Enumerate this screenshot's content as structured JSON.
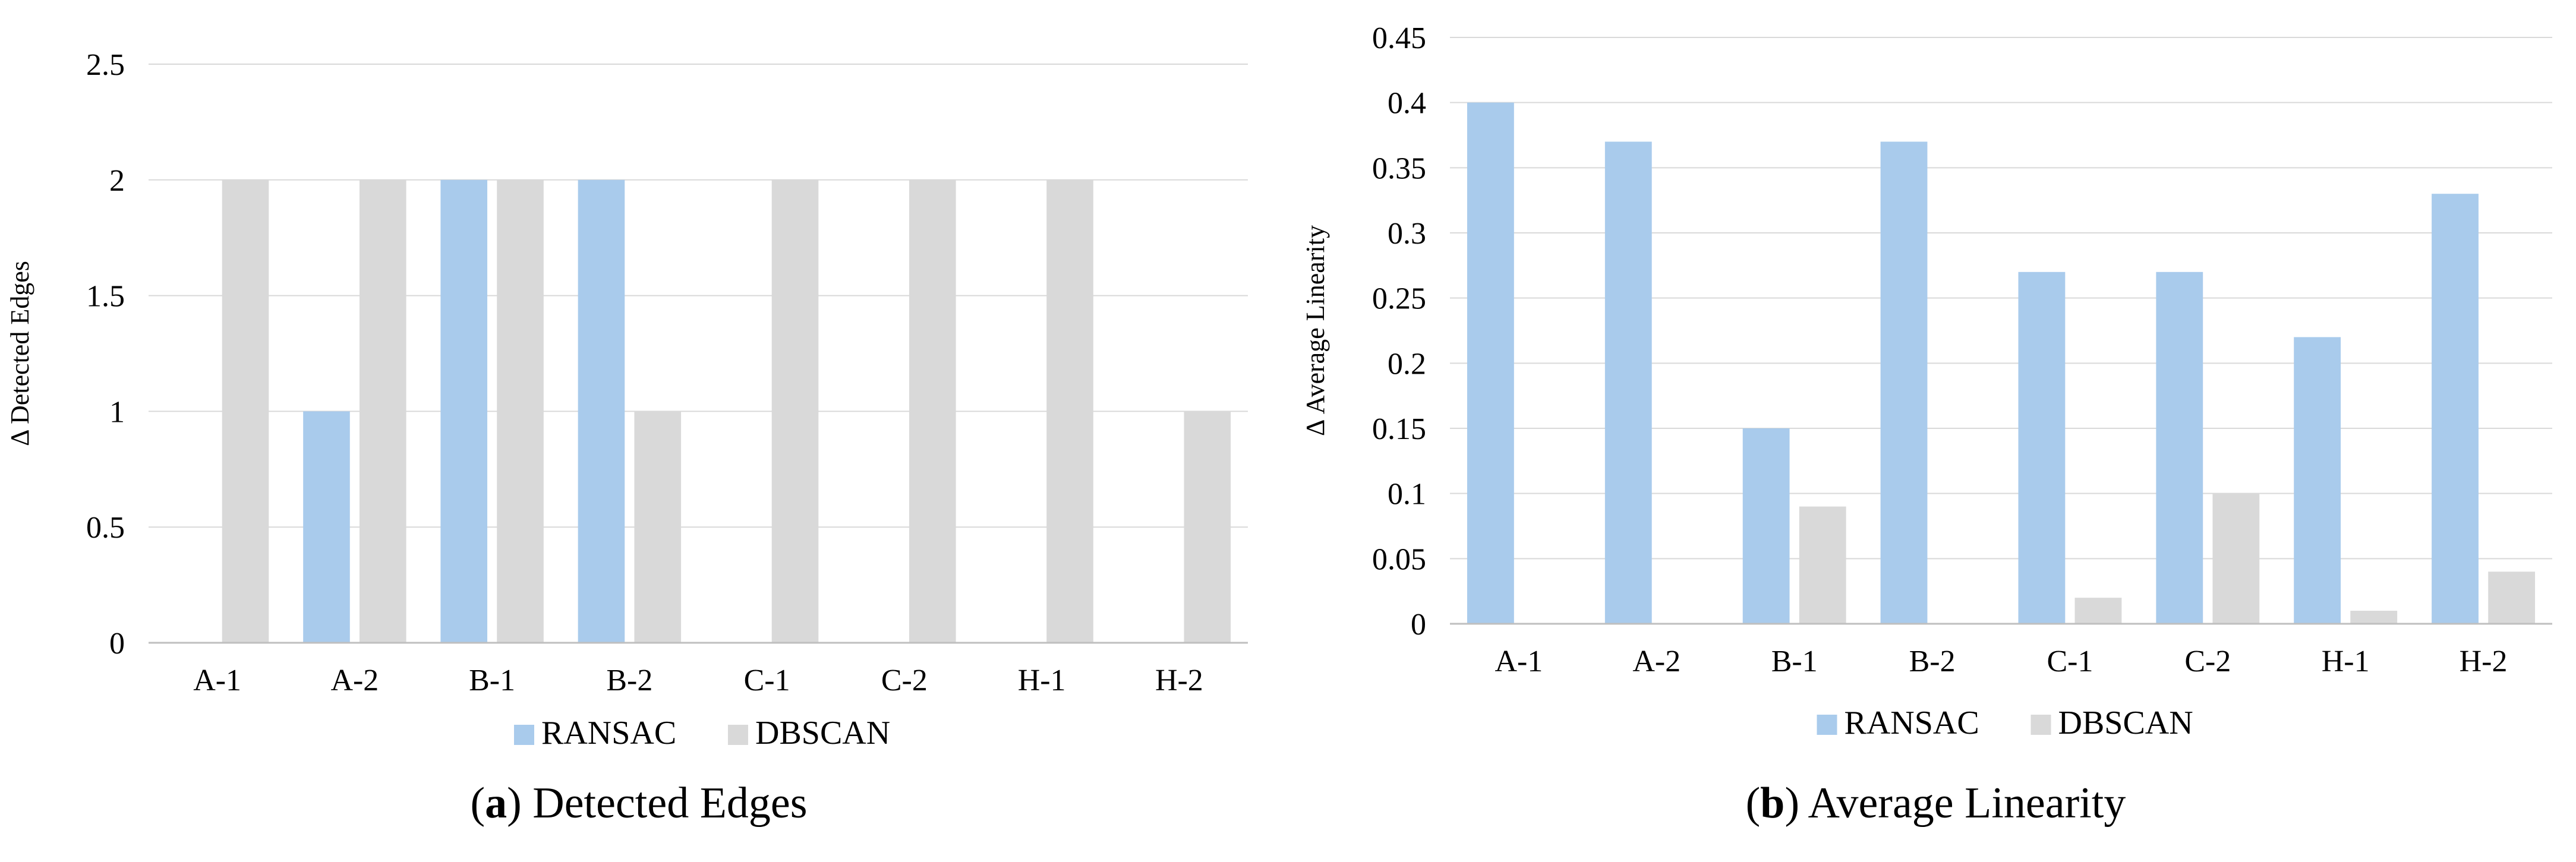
{
  "charts": [
    {
      "caption": {
        "letter": "a",
        "text": "Detected Edges"
      },
      "legend": [
        "RANSAC",
        "DBSCAN"
      ]
    },
    {
      "caption": {
        "letter": "b",
        "text": "Average Linearity"
      },
      "legend": [
        "RANSAC",
        "DBSCAN"
      ]
    }
  ],
  "colors": {
    "ransac": "#a9cbec",
    "dbscan": "#d9d9d9",
    "grid": "#d9d9d9",
    "axis": "#bfbfbf"
  },
  "chart_data": [
    {
      "type": "bar",
      "categories": [
        "A-1",
        "A-2",
        "B-1",
        "B-2",
        "C-1",
        "C-2",
        "H-1",
        "H-2"
      ],
      "series": [
        {
          "name": "RANSAC",
          "values": [
            0,
            1,
            2,
            2,
            0,
            0,
            0,
            0
          ]
        },
        {
          "name": "DBSCAN",
          "values": [
            2,
            2,
            2,
            1,
            2,
            2,
            2,
            1
          ]
        }
      ],
      "title": "",
      "xlabel": "",
      "ylabel": "Δ Detected Edges",
      "ylim": [
        0,
        2.5
      ],
      "yticks": [
        "0",
        "0.5",
        "1",
        "1.5",
        "2",
        "2.5"
      ],
      "grid": true,
      "legend_position": "bottom"
    },
    {
      "type": "bar",
      "categories": [
        "A-1",
        "A-2",
        "B-1",
        "B-2",
        "C-1",
        "C-2",
        "H-1",
        "H-2"
      ],
      "series": [
        {
          "name": "RANSAC",
          "values": [
            0.4,
            0.37,
            0.15,
            0.37,
            0.27,
            0.27,
            0.22,
            0.33
          ]
        },
        {
          "name": "DBSCAN",
          "values": [
            0,
            0,
            0.09,
            0,
            0.02,
            0.1,
            0.01,
            0.04
          ]
        }
      ],
      "title": "",
      "xlabel": "",
      "ylabel": "Δ Average Linearity",
      "ylim": [
        0,
        0.45
      ],
      "yticks": [
        "0",
        "0.05",
        "0.1",
        "0.15",
        "0.2",
        "0.25",
        "0.3",
        "0.35",
        "0.4",
        "0.45"
      ],
      "grid": true,
      "legend_position": "bottom"
    }
  ]
}
